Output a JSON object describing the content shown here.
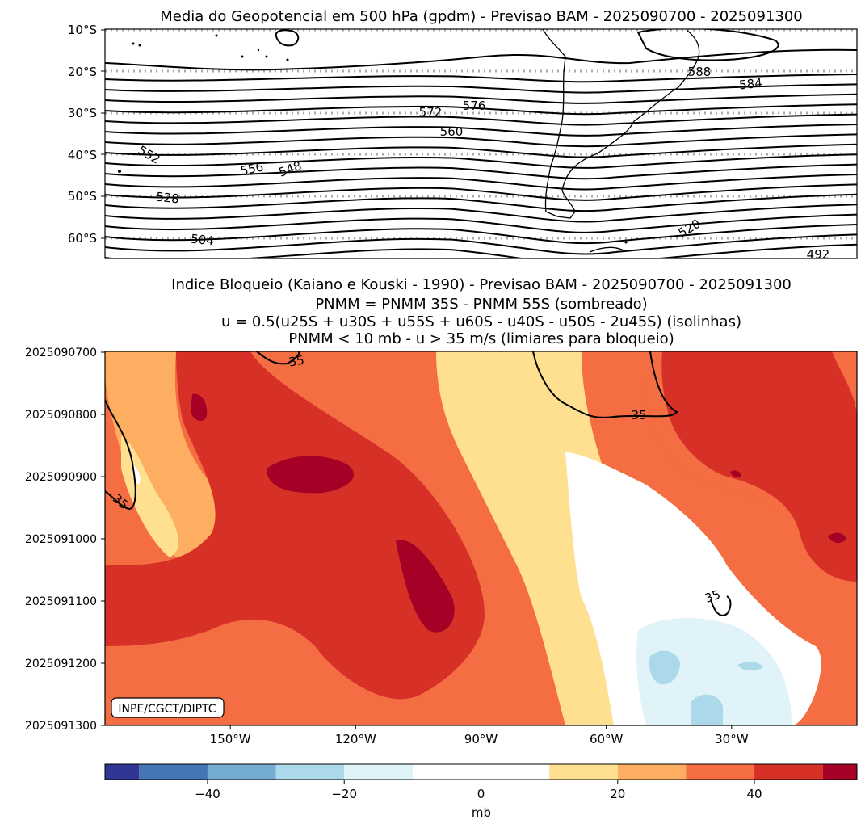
{
  "chart_data": [
    {
      "type": "contour",
      "title": "Media do Geopotencial em 500 hPa (gpdm) - Previsao BAM - 2025090700 - 2025091300",
      "ytick_labels": [
        "10°S",
        "20°S",
        "30°S",
        "40°S",
        "50°S",
        "60°S"
      ],
      "lat_ticks": [
        -10,
        -20,
        -30,
        -40,
        -50,
        -60
      ],
      "ylim": [
        -10,
        -65
      ],
      "contour_labels": [
        "588",
        "584",
        "576",
        "572",
        "560",
        "552",
        "556",
        "548",
        "528",
        "504",
        "520",
        "492"
      ],
      "gridlines": true,
      "gridline_style": "dotted"
    },
    {
      "type": "heatmap",
      "title_lines": [
        "Indice Bloqueio (Kaiano e Kouski - 1990) - Previsao BAM - 2025090700 - 2025091300",
        "PNMM = PNMM 35S - PNMM 55S (sombreado)",
        "u = 0.5(u25S + u30S + u55S + u60S - u40S - u50S - 2u45S) (isolinhas)",
        "PNMM < 10 mb - u > 35 m/s (limiares para bloqueio)"
      ],
      "ytick_labels": [
        "2025090700",
        "2025090800",
        "2025090900",
        "2025091000",
        "2025091100",
        "2025091200",
        "2025091300"
      ],
      "xtick_labels": [
        "150°W",
        "120°W",
        "90°W",
        "60°W",
        "30°W"
      ],
      "xtick_values": [
        -150,
        -120,
        -90,
        -60,
        -30
      ],
      "xlim": [
        -180,
        0
      ],
      "contour_label": "35",
      "colorbar": {
        "label": "mb",
        "tick_labels": [
          "−40",
          "−20",
          "0",
          "20",
          "40"
        ],
        "tick_values": [
          -40,
          -20,
          0,
          20,
          40
        ],
        "range": [
          -55,
          55
        ],
        "levels": [
          -55,
          -50,
          -40,
          -30,
          -20,
          -10,
          10,
          20,
          30,
          40,
          50,
          55
        ],
        "colors": [
          "#313695",
          "#4575b4",
          "#74add1",
          "#abd9e9",
          "#e0f3f8",
          "#ffffff",
          "#fee090",
          "#fdae61",
          "#f46d43",
          "#d73027",
          "#a50026"
        ]
      },
      "watermark": "INPE/CGCT/DIPTC"
    }
  ]
}
